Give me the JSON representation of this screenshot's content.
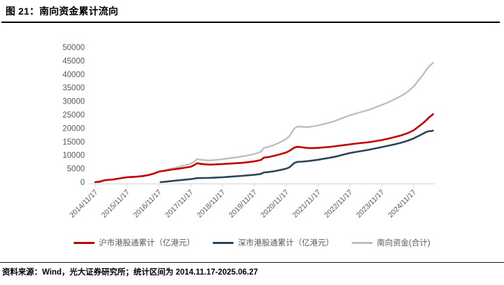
{
  "figure": {
    "title": "图 21：南向资金累计流向",
    "source_note": "资料来源：Wind，光大证券研究所；统计区间为 2014.11.17-2025.06.27"
  },
  "colors": {
    "sh_line": "#C00000",
    "sz_line": "#2F4457",
    "total_line": "#BFBFBF",
    "axis_text": "#595959",
    "axis_line": "#D9D9D9"
  },
  "chart_data": {
    "type": "line",
    "title": "南向资金累计流向",
    "unit": "亿港元",
    "legend_position": "bottom",
    "grid": false,
    "ylim": [
      0,
      50000
    ],
    "y_ticks": [
      0,
      5000,
      10000,
      15000,
      20000,
      25000,
      30000,
      35000,
      40000,
      45000,
      50000
    ],
    "x_tick_labels": [
      "2014/11/17",
      "2015/11/17",
      "2016/11/17",
      "2017/11/17",
      "2018/11/17",
      "2019/11/17",
      "2020/11/17",
      "2021/11/17",
      "2022/11/17",
      "2023/11/17",
      "2024/11/17"
    ],
    "x_axis_note": "x = years after 2014/11/17, data through 2025/06/27",
    "x_range": [
      0,
      10.61
    ],
    "series": [
      {
        "key": "sh",
        "name": "沪市港股通累计（亿港元）",
        "color": "#C00000",
        "points": [
          [
            0,
            0
          ],
          [
            0.15,
            150
          ],
          [
            0.3,
            700
          ],
          [
            0.45,
            900
          ],
          [
            0.55,
            950
          ],
          [
            0.7,
            1250
          ],
          [
            0.85,
            1550
          ],
          [
            1.0,
            1800
          ],
          [
            1.15,
            1900
          ],
          [
            1.3,
            2000
          ],
          [
            1.5,
            2250
          ],
          [
            1.7,
            2700
          ],
          [
            1.85,
            3200
          ],
          [
            2.0,
            3900
          ],
          [
            2.05,
            4000
          ],
          [
            2.2,
            4250
          ],
          [
            2.4,
            4650
          ],
          [
            2.6,
            4950
          ],
          [
            2.8,
            5300
          ],
          [
            3.0,
            5700
          ],
          [
            3.1,
            6300
          ],
          [
            3.2,
            7000
          ],
          [
            3.3,
            6800
          ],
          [
            3.45,
            6600
          ],
          [
            3.6,
            6500
          ],
          [
            3.75,
            6550
          ],
          [
            4.0,
            6700
          ],
          [
            4.2,
            6850
          ],
          [
            4.4,
            7000
          ],
          [
            4.6,
            7150
          ],
          [
            4.8,
            7400
          ],
          [
            5.0,
            7700
          ],
          [
            5.2,
            8200
          ],
          [
            5.3,
            9100
          ],
          [
            5.45,
            9300
          ],
          [
            5.6,
            9700
          ],
          [
            5.8,
            10300
          ],
          [
            6.0,
            11000
          ],
          [
            6.1,
            11600
          ],
          [
            6.25,
            12800
          ],
          [
            6.35,
            13100
          ],
          [
            6.5,
            12900
          ],
          [
            6.7,
            12600
          ],
          [
            6.85,
            12600
          ],
          [
            7.0,
            12700
          ],
          [
            7.2,
            12900
          ],
          [
            7.4,
            13100
          ],
          [
            7.6,
            13400
          ],
          [
            7.8,
            13700
          ],
          [
            8.0,
            14000
          ],
          [
            8.2,
            14300
          ],
          [
            8.4,
            14550
          ],
          [
            8.6,
            14800
          ],
          [
            8.8,
            15200
          ],
          [
            9.0,
            15600
          ],
          [
            9.2,
            16100
          ],
          [
            9.4,
            16700
          ],
          [
            9.6,
            17300
          ],
          [
            9.8,
            18100
          ],
          [
            10.0,
            19200
          ],
          [
            10.1,
            20100
          ],
          [
            10.2,
            21000
          ],
          [
            10.3,
            21900
          ],
          [
            10.4,
            23000
          ],
          [
            10.5,
            24200
          ],
          [
            10.55,
            24600
          ],
          [
            10.61,
            25200
          ]
        ]
      },
      {
        "key": "sz",
        "name": "深市港股通累计（亿港元）",
        "color": "#2F4457",
        "points": [
          [
            2.05,
            0
          ],
          [
            2.2,
            150
          ],
          [
            2.4,
            400
          ],
          [
            2.6,
            650
          ],
          [
            2.8,
            880
          ],
          [
            3.0,
            1100
          ],
          [
            3.1,
            1300
          ],
          [
            3.2,
            1500
          ],
          [
            3.35,
            1520
          ],
          [
            3.5,
            1550
          ],
          [
            3.65,
            1600
          ],
          [
            3.8,
            1700
          ],
          [
            4.0,
            1800
          ],
          [
            4.2,
            1980
          ],
          [
            4.4,
            2150
          ],
          [
            4.6,
            2330
          ],
          [
            4.8,
            2520
          ],
          [
            5.0,
            2700
          ],
          [
            5.2,
            3050
          ],
          [
            5.3,
            3600
          ],
          [
            5.45,
            3750
          ],
          [
            5.6,
            4000
          ],
          [
            5.8,
            4450
          ],
          [
            6.0,
            5000
          ],
          [
            6.1,
            5500
          ],
          [
            6.25,
            7100
          ],
          [
            6.35,
            7500
          ],
          [
            6.5,
            7600
          ],
          [
            6.7,
            7800
          ],
          [
            7.0,
            8300
          ],
          [
            7.2,
            8700
          ],
          [
            7.4,
            9100
          ],
          [
            7.6,
            9600
          ],
          [
            7.8,
            10200
          ],
          [
            8.0,
            10800
          ],
          [
            8.2,
            11200
          ],
          [
            8.4,
            11600
          ],
          [
            8.6,
            12000
          ],
          [
            8.8,
            12500
          ],
          [
            9.0,
            13000
          ],
          [
            9.2,
            13500
          ],
          [
            9.4,
            14000
          ],
          [
            9.6,
            14600
          ],
          [
            9.8,
            15300
          ],
          [
            10.0,
            16200
          ],
          [
            10.1,
            16800
          ],
          [
            10.2,
            17400
          ],
          [
            10.3,
            18000
          ],
          [
            10.4,
            18600
          ],
          [
            10.5,
            18950
          ],
          [
            10.55,
            18900
          ],
          [
            10.61,
            19100
          ]
        ]
      },
      {
        "key": "total",
        "name": "南向资金(合计)",
        "color": "#BFBFBF",
        "points": [
          [
            0,
            0
          ],
          [
            0.3,
            700
          ],
          [
            0.55,
            950
          ],
          [
            0.85,
            1550
          ],
          [
            1.0,
            1800
          ],
          [
            1.3,
            2000
          ],
          [
            1.7,
            2700
          ],
          [
            2.0,
            3900
          ],
          [
            2.05,
            4000
          ],
          [
            2.2,
            4400
          ],
          [
            2.4,
            5050
          ],
          [
            2.6,
            5600
          ],
          [
            2.8,
            6180
          ],
          [
            3.0,
            6800
          ],
          [
            3.1,
            7600
          ],
          [
            3.2,
            8500
          ],
          [
            3.3,
            8320
          ],
          [
            3.45,
            8140
          ],
          [
            3.6,
            8050
          ],
          [
            3.8,
            8250
          ],
          [
            4.0,
            8500
          ],
          [
            4.2,
            8830
          ],
          [
            4.4,
            9150
          ],
          [
            4.6,
            9480
          ],
          [
            4.8,
            9920
          ],
          [
            5.0,
            10400
          ],
          [
            5.2,
            11250
          ],
          [
            5.3,
            12700
          ],
          [
            5.45,
            13050
          ],
          [
            5.6,
            13700
          ],
          [
            5.8,
            14750
          ],
          [
            6.0,
            16000
          ],
          [
            6.1,
            17100
          ],
          [
            6.25,
            19900
          ],
          [
            6.35,
            20600
          ],
          [
            6.5,
            20500
          ],
          [
            6.7,
            20400
          ],
          [
            7.0,
            21000
          ],
          [
            7.2,
            21600
          ],
          [
            7.4,
            22200
          ],
          [
            7.6,
            23000
          ],
          [
            7.8,
            23900
          ],
          [
            8.0,
            24800
          ],
          [
            8.2,
            25500
          ],
          [
            8.4,
            26150
          ],
          [
            8.6,
            26800
          ],
          [
            8.8,
            27700
          ],
          [
            9.0,
            28600
          ],
          [
            9.2,
            29600
          ],
          [
            9.4,
            30700
          ],
          [
            9.6,
            31900
          ],
          [
            9.8,
            33400
          ],
          [
            10.0,
            35400
          ],
          [
            10.1,
            36900
          ],
          [
            10.2,
            38400
          ],
          [
            10.3,
            39900
          ],
          [
            10.4,
            41600
          ],
          [
            10.5,
            43150
          ],
          [
            10.55,
            43500
          ],
          [
            10.61,
            44300
          ]
        ]
      }
    ]
  }
}
